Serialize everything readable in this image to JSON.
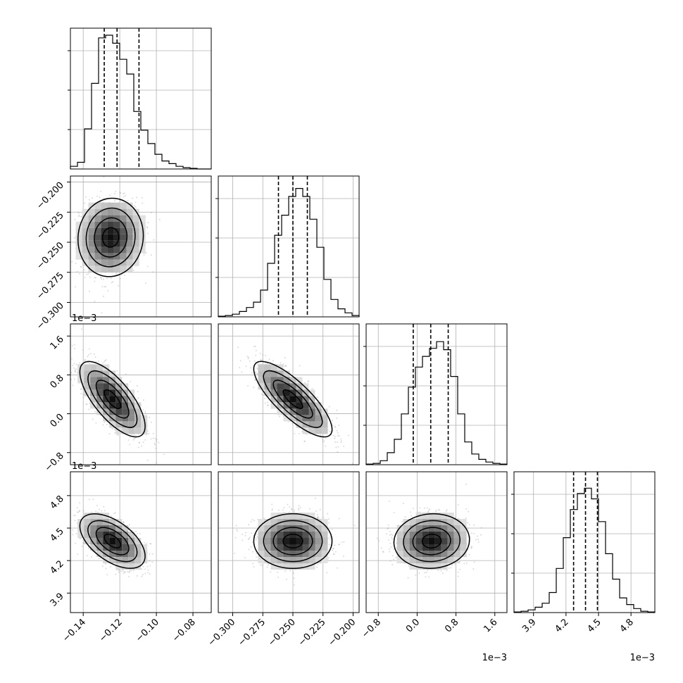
{
  "chart_data": {
    "type": "corner",
    "grid": true,
    "params": [
      {
        "ticks": [
          -0.14,
          -0.12,
          -0.1,
          -0.08
        ],
        "tick_labels": [
          "−0.14",
          "−0.12",
          "−0.10",
          "−0.08"
        ],
        "range": [
          -0.147,
          -0.07
        ],
        "offset": "",
        "quantiles": [
          -0.1285,
          -0.1215,
          -0.1095
        ]
      },
      {
        "ticks": [
          -0.3,
          -0.275,
          -0.25,
          -0.225,
          -0.2
        ],
        "tick_labels": [
          "−0.300",
          "−0.275",
          "−0.250",
          "−0.225",
          "−0.200"
        ],
        "range": [
          -0.312,
          -0.195
        ],
        "offset": "",
        "quantiles": [
          -0.262,
          -0.25,
          -0.238
        ]
      },
      {
        "ticks": [
          -0.8,
          0.0,
          0.8,
          1.6
        ],
        "tick_labels": [
          "−0.8",
          "0.0",
          "0.8",
          "1.6"
        ],
        "range": [
          -1.05,
          1.85
        ],
        "offset": "1e−3",
        "quantiles": [
          -0.08,
          0.28,
          0.64
        ]
      },
      {
        "ticks": [
          3.9,
          4.2,
          4.5,
          4.8
        ],
        "tick_labels": [
          "3.9",
          "4.2",
          "4.5",
          "4.8"
        ],
        "range": [
          3.72,
          5.02
        ],
        "offset": "1e−3",
        "quantiles": [
          4.27,
          4.38,
          4.49
        ]
      }
    ],
    "histograms": [
      [
        0.02,
        0.05,
        0.3,
        0.64,
        0.98,
        1.0,
        0.94,
        0.82,
        0.71,
        0.43,
        0.29,
        0.19,
        0.11,
        0.06,
        0.04,
        0.02,
        0.01,
        0.005,
        0,
        0
      ],
      [
        0.005,
        0.01,
        0.02,
        0.04,
        0.07,
        0.11,
        0.2,
        0.4,
        0.61,
        0.76,
        0.9,
        0.96,
        0.9,
        0.73,
        0.52,
        0.28,
        0.13,
        0.06,
        0.03,
        0.01
      ],
      [
        0.005,
        0.01,
        0.03,
        0.09,
        0.19,
        0.38,
        0.58,
        0.73,
        0.81,
        0.87,
        0.92,
        0.86,
        0.66,
        0.38,
        0.17,
        0.08,
        0.04,
        0.02,
        0.01,
        0.005
      ],
      [
        0.005,
        0.01,
        0.02,
        0.04,
        0.07,
        0.15,
        0.33,
        0.56,
        0.77,
        0.89,
        0.93,
        0.85,
        0.68,
        0.44,
        0.25,
        0.11,
        0.06,
        0.03,
        0.01,
        0.005
      ]
    ],
    "pairs": [
      {
        "x": 0,
        "y": 1,
        "mean": [
          -0.125,
          -0.246
        ],
        "sd": [
          0.0085,
          0.0155
        ],
        "rho": 0.05
      },
      {
        "x": 0,
        "y": 2,
        "mean": [
          -0.124,
          0.3
        ],
        "sd": [
          0.0085,
          0.37
        ],
        "rho": -0.72
      },
      {
        "x": 1,
        "y": 2,
        "mean": [
          -0.25,
          0.3
        ],
        "sd": [
          0.0155,
          0.37
        ],
        "rho": -0.8
      },
      {
        "x": 0,
        "y": 3,
        "mean": [
          -0.124,
          4.38
        ],
        "sd": [
          0.0085,
          0.12
        ],
        "rho": -0.55
      },
      {
        "x": 1,
        "y": 3,
        "mean": [
          -0.25,
          4.38
        ],
        "sd": [
          0.0155,
          0.12
        ],
        "rho": 0.0
      },
      {
        "x": 2,
        "y": 3,
        "mean": [
          0.3,
          4.38
        ],
        "sd": [
          0.37,
          0.12
        ],
        "rho": 0.05
      }
    ]
  }
}
